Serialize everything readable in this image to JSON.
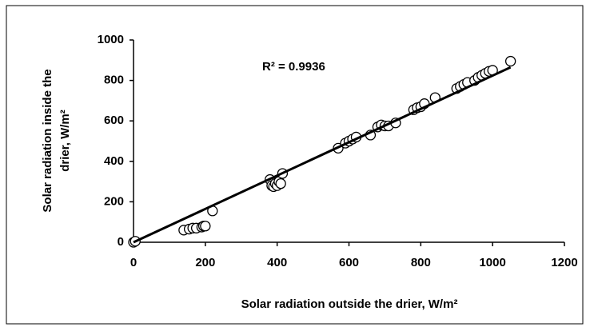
{
  "chart_data": {
    "type": "scatter",
    "annotation": "R² = 0.9936",
    "xlabel": "Solar  radiation outside the drier, W/m²",
    "ylabel": [
      "Solar  radiation inside the",
      "drier, W/m²"
    ],
    "x": [
      0,
      5,
      140,
      155,
      165,
      175,
      190,
      195,
      200,
      220,
      380,
      385,
      390,
      395,
      400,
      405,
      410,
      415,
      570,
      590,
      600,
      610,
      620,
      660,
      680,
      690,
      700,
      710,
      730,
      780,
      790,
      800,
      810,
      840,
      900,
      910,
      920,
      930,
      950,
      960,
      970,
      980,
      990,
      1000,
      1050
    ],
    "values": [
      0,
      5,
      60,
      65,
      70,
      70,
      75,
      80,
      80,
      155,
      310,
      280,
      275,
      290,
      280,
      300,
      290,
      340,
      465,
      490,
      500,
      510,
      520,
      530,
      570,
      580,
      575,
      575,
      590,
      655,
      665,
      670,
      685,
      715,
      760,
      770,
      780,
      790,
      800,
      815,
      825,
      835,
      845,
      850,
      895
    ],
    "marker_color": "#000000",
    "trendline": {
      "x": [
        0,
        1050
      ],
      "values": [
        0,
        865
      ],
      "color": "#000000"
    },
    "xlim": [
      0,
      1200
    ],
    "xticks": [
      0,
      200,
      400,
      600,
      800,
      1000,
      1200
    ],
    "ylim": [
      0,
      1000
    ],
    "yticks": [
      0,
      200,
      400,
      600,
      800,
      1000
    ]
  }
}
